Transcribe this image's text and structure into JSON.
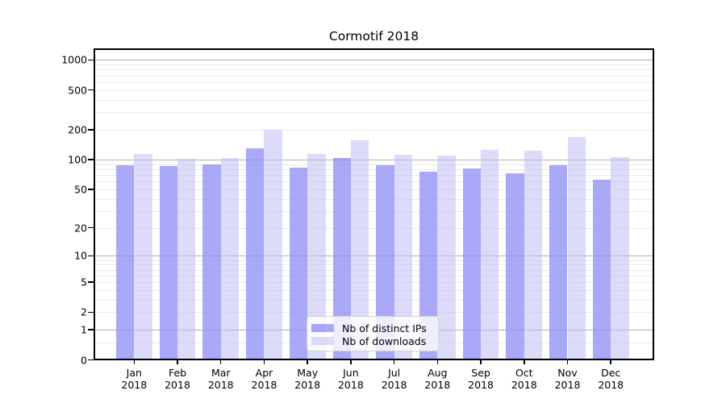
{
  "figure": {
    "title": "Cormotif 2018",
    "background": "#ffffff"
  },
  "chart_data": {
    "type": "bar",
    "title": "Cormotif 2018",
    "y_scale": "log1p",
    "ylim": [
      0,
      1310
    ],
    "grid": true,
    "legend_position": "bottom-center",
    "categories": [
      "Jan",
      "Feb",
      "Mar",
      "Apr",
      "May",
      "Jun",
      "Jul",
      "Aug",
      "Sep",
      "Oct",
      "Nov",
      "Dec"
    ],
    "x_year": "2018",
    "y_ticks": [
      0,
      1,
      2,
      5,
      10,
      20,
      50,
      100,
      200,
      500,
      1000
    ],
    "series": [
      {
        "name": "Nb of distinct IPs",
        "color": "#8c8cf4",
        "alpha": 0.75,
        "values": [
          88,
          86,
          90,
          129,
          83,
          104,
          87,
          75,
          82,
          73,
          87,
          63
        ]
      },
      {
        "name": "Nb of downloads",
        "color": "#bfbff6",
        "alpha": 0.55,
        "values": [
          114,
          101,
          104,
          198,
          113,
          158,
          112,
          110,
          125,
          122,
          170,
          106
        ]
      }
    ]
  },
  "colors": {
    "major_grid": "#b0b0b0",
    "minor_grid": "#e9e9e9",
    "axis_frame": "#000000",
    "legend_border": "#d0d0d0",
    "legend_bg": "rgba(255,255,255,0.8)"
  }
}
